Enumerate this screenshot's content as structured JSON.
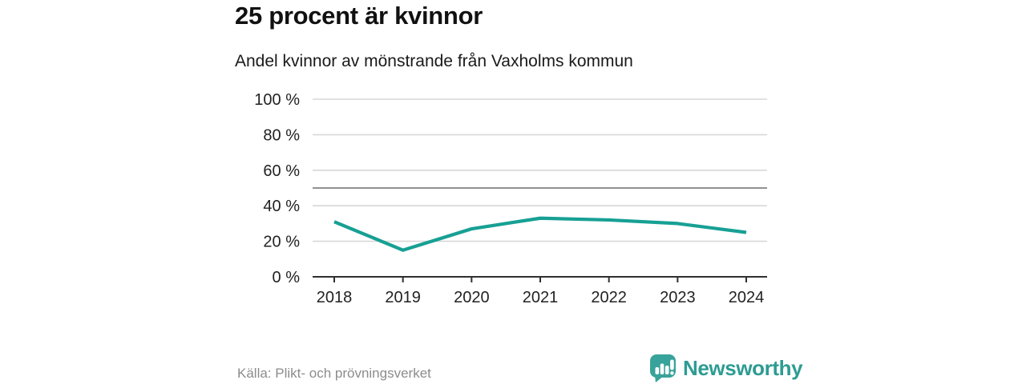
{
  "header": {
    "title": "25 procent är kvinnor",
    "subtitle": "Andel kvinnor av mönstrande från Vaxholms kommun"
  },
  "chart_data": {
    "type": "line",
    "x": [
      2018,
      2019,
      2020,
      2021,
      2022,
      2023,
      2024
    ],
    "series": [
      {
        "name": "Andel kvinnor av mönstrande",
        "values": [
          31,
          15,
          27,
          33,
          32,
          30,
          25
        ]
      }
    ],
    "title": "25 procent är kvinnor",
    "subtitle": "Andel kvinnor av mönstrande från Vaxholms kommun",
    "xlabel": "",
    "ylabel": "",
    "ylim": [
      0,
      100
    ],
    "yticks": [
      0,
      20,
      40,
      60,
      80,
      100
    ],
    "ytick_suffix": " %",
    "reference_line": 50,
    "grid": true,
    "legend": false
  },
  "footer": {
    "source": "Källa: Plikt- och prövningsverket",
    "brand": "Newsworthy"
  },
  "colors": {
    "line": "#17a094",
    "grid": "#d8d8d8",
    "reference": "#6e6e6e",
    "axis": "#2f2f2f",
    "tick_text": "#222222",
    "source_text": "#8c8c8c",
    "brand_teal": "#2d9c92"
  }
}
